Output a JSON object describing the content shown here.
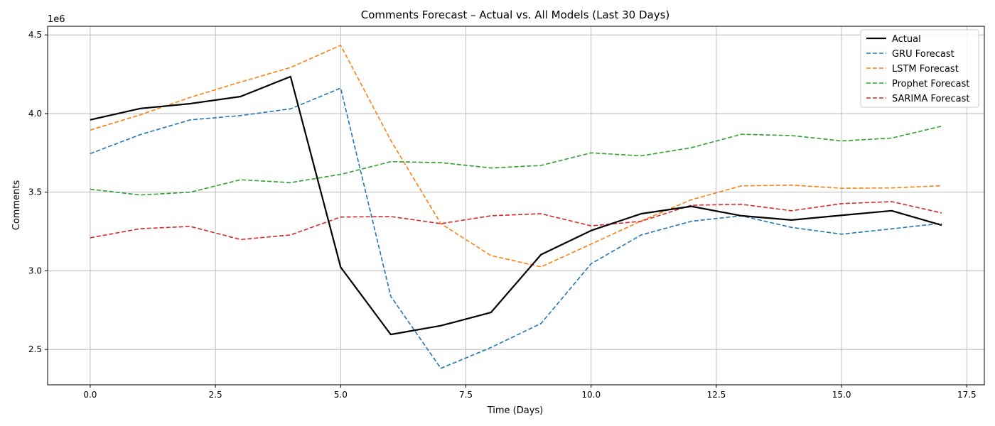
{
  "chart_data": {
    "type": "line",
    "title": "Comments Forecast – Actual vs. All Models (Last 30 Days)",
    "xlabel": "Time (Days)",
    "ylabel": "Comments",
    "y_multiplier_label": "1e6",
    "xlim": [
      -0.85,
      17.85
    ],
    "ylim": [
      2.275,
      4.555
    ],
    "xticks": [
      0.0,
      2.5,
      5.0,
      7.5,
      10.0,
      12.5,
      15.0,
      17.5
    ],
    "xtick_labels": [
      "0.0",
      "2.5",
      "5.0",
      "7.5",
      "10.0",
      "12.5",
      "15.0",
      "17.5"
    ],
    "yticks": [
      2.5,
      3.0,
      3.5,
      4.0,
      4.5
    ],
    "ytick_labels": [
      "2.5",
      "3.0",
      "3.5",
      "4.0",
      "4.5"
    ],
    "grid": true,
    "legend_position": "top-right",
    "x": [
      0,
      1,
      2,
      3,
      4,
      5,
      6,
      7,
      8,
      9,
      10,
      11,
      12,
      13,
      14,
      15,
      16,
      17
    ],
    "series": [
      {
        "name": "Actual",
        "color": "#000000",
        "style": "solid",
        "values": [
          3.96,
          4.032,
          4.063,
          4.108,
          4.235,
          3.023,
          2.595,
          2.651,
          2.735,
          3.103,
          3.256,
          3.363,
          3.41,
          3.35,
          3.323,
          3.353,
          3.382,
          3.29
        ]
      },
      {
        "name": "GRU Forecast",
        "color": "#1f77b4",
        "style": "dashed",
        "values": [
          3.745,
          3.866,
          3.96,
          3.987,
          4.03,
          4.162,
          2.838,
          2.38,
          2.512,
          2.665,
          3.045,
          3.228,
          3.315,
          3.35,
          3.276,
          3.233,
          3.267,
          3.302
        ]
      },
      {
        "name": "LSTM Forecast",
        "color": "#ff7f0e",
        "style": "dashed",
        "values": [
          3.895,
          3.992,
          4.103,
          4.2,
          4.293,
          4.434,
          3.83,
          3.3,
          3.097,
          3.025,
          3.17,
          3.317,
          3.452,
          3.54,
          3.545,
          3.525,
          3.527,
          3.541
        ]
      },
      {
        "name": "Prophet Forecast",
        "color": "#2ca02c",
        "style": "dashed",
        "values": [
          3.519,
          3.482,
          3.5,
          3.579,
          3.561,
          3.613,
          3.694,
          3.688,
          3.654,
          3.67,
          3.75,
          3.731,
          3.783,
          3.868,
          3.86,
          3.826,
          3.844,
          3.92
        ]
      },
      {
        "name": "SARIMA Forecast",
        "color": "#d62728",
        "style": "dashed",
        "values": [
          3.21,
          3.268,
          3.282,
          3.199,
          3.228,
          3.342,
          3.345,
          3.3,
          3.35,
          3.363,
          3.286,
          3.315,
          3.417,
          3.423,
          3.382,
          3.427,
          3.44,
          3.368
        ]
      }
    ]
  }
}
